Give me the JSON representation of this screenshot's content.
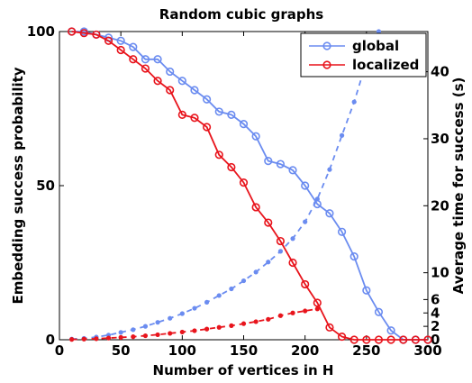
{
  "chart_data": {
    "type": "line",
    "title": "Random cubic graphs",
    "xlabel": "Number of vertices in H",
    "ylabel_left": "Embedding success probability",
    "ylabel_right": "Average time for success (s)",
    "xlim": [
      0,
      300
    ],
    "ylim_left": [
      0,
      100
    ],
    "ylim_right": [
      0,
      46
    ],
    "x_ticks": [
      "0",
      "50",
      "100",
      "150",
      "200",
      "250",
      "300"
    ],
    "y_left_ticks": [
      "0",
      "50",
      "100"
    ],
    "y_right_ticks": [
      "0",
      "2",
      "4",
      "6",
      "10",
      "20",
      "30",
      "40"
    ],
    "grid": false,
    "legend_position": "top-right",
    "legend": [
      "global",
      "localized"
    ],
    "colors": {
      "global": "#6b8cf0",
      "localized": "#e8141c"
    },
    "x": [
      10,
      20,
      30,
      40,
      50,
      60,
      70,
      80,
      90,
      100,
      110,
      120,
      130,
      140,
      150,
      160,
      170,
      180,
      190,
      200,
      210,
      220,
      230,
      240,
      250,
      260,
      270,
      280,
      290,
      300
    ],
    "series": [
      {
        "name": "global",
        "axis": "left",
        "style": "solid",
        "values": [
          100,
          100,
          99,
          98,
          97,
          95,
          91,
          91,
          87,
          84,
          81,
          78,
          74,
          73,
          70,
          66,
          58,
          57,
          55,
          50,
          44,
          41,
          35,
          27,
          16,
          9,
          3,
          0,
          0,
          0
        ]
      },
      {
        "name": "localized",
        "axis": "left",
        "style": "solid",
        "values": [
          100,
          99.5,
          99,
          97,
          94,
          91,
          88,
          84,
          81,
          73,
          72,
          69,
          60,
          56,
          51,
          43,
          38,
          32,
          25,
          18,
          12,
          4,
          1,
          0,
          0,
          0,
          0,
          0,
          0,
          0
        ]
      },
      {
        "name": "global",
        "axis": "right",
        "style": "dashed",
        "x": [
          10,
          20,
          30,
          40,
          50,
          60,
          70,
          80,
          90,
          100,
          110,
          120,
          130,
          140,
          150,
          160,
          170,
          180,
          190,
          200,
          210,
          220,
          230,
          240,
          250,
          260
        ],
        "values": [
          0.1,
          0.2,
          0.4,
          0.7,
          1.1,
          1.5,
          2.0,
          2.6,
          3.2,
          3.9,
          4.7,
          5.6,
          6.6,
          7.6,
          8.8,
          10.1,
          11.6,
          13.2,
          15.1,
          17.6,
          21.0,
          25.4,
          30.5,
          35.5,
          41.5,
          46.0
        ]
      },
      {
        "name": "localized",
        "axis": "right",
        "style": "dashed",
        "x": [
          10,
          20,
          30,
          40,
          50,
          60,
          70,
          80,
          90,
          100,
          110,
          120,
          130,
          140,
          150,
          160,
          170,
          180,
          190,
          200,
          210
        ],
        "values": [
          0.05,
          0.1,
          0.15,
          0.25,
          0.35,
          0.45,
          0.6,
          0.75,
          0.95,
          1.15,
          1.35,
          1.6,
          1.85,
          2.1,
          2.4,
          2.7,
          3.05,
          3.6,
          4.0,
          4.3,
          4.6
        ]
      }
    ]
  }
}
